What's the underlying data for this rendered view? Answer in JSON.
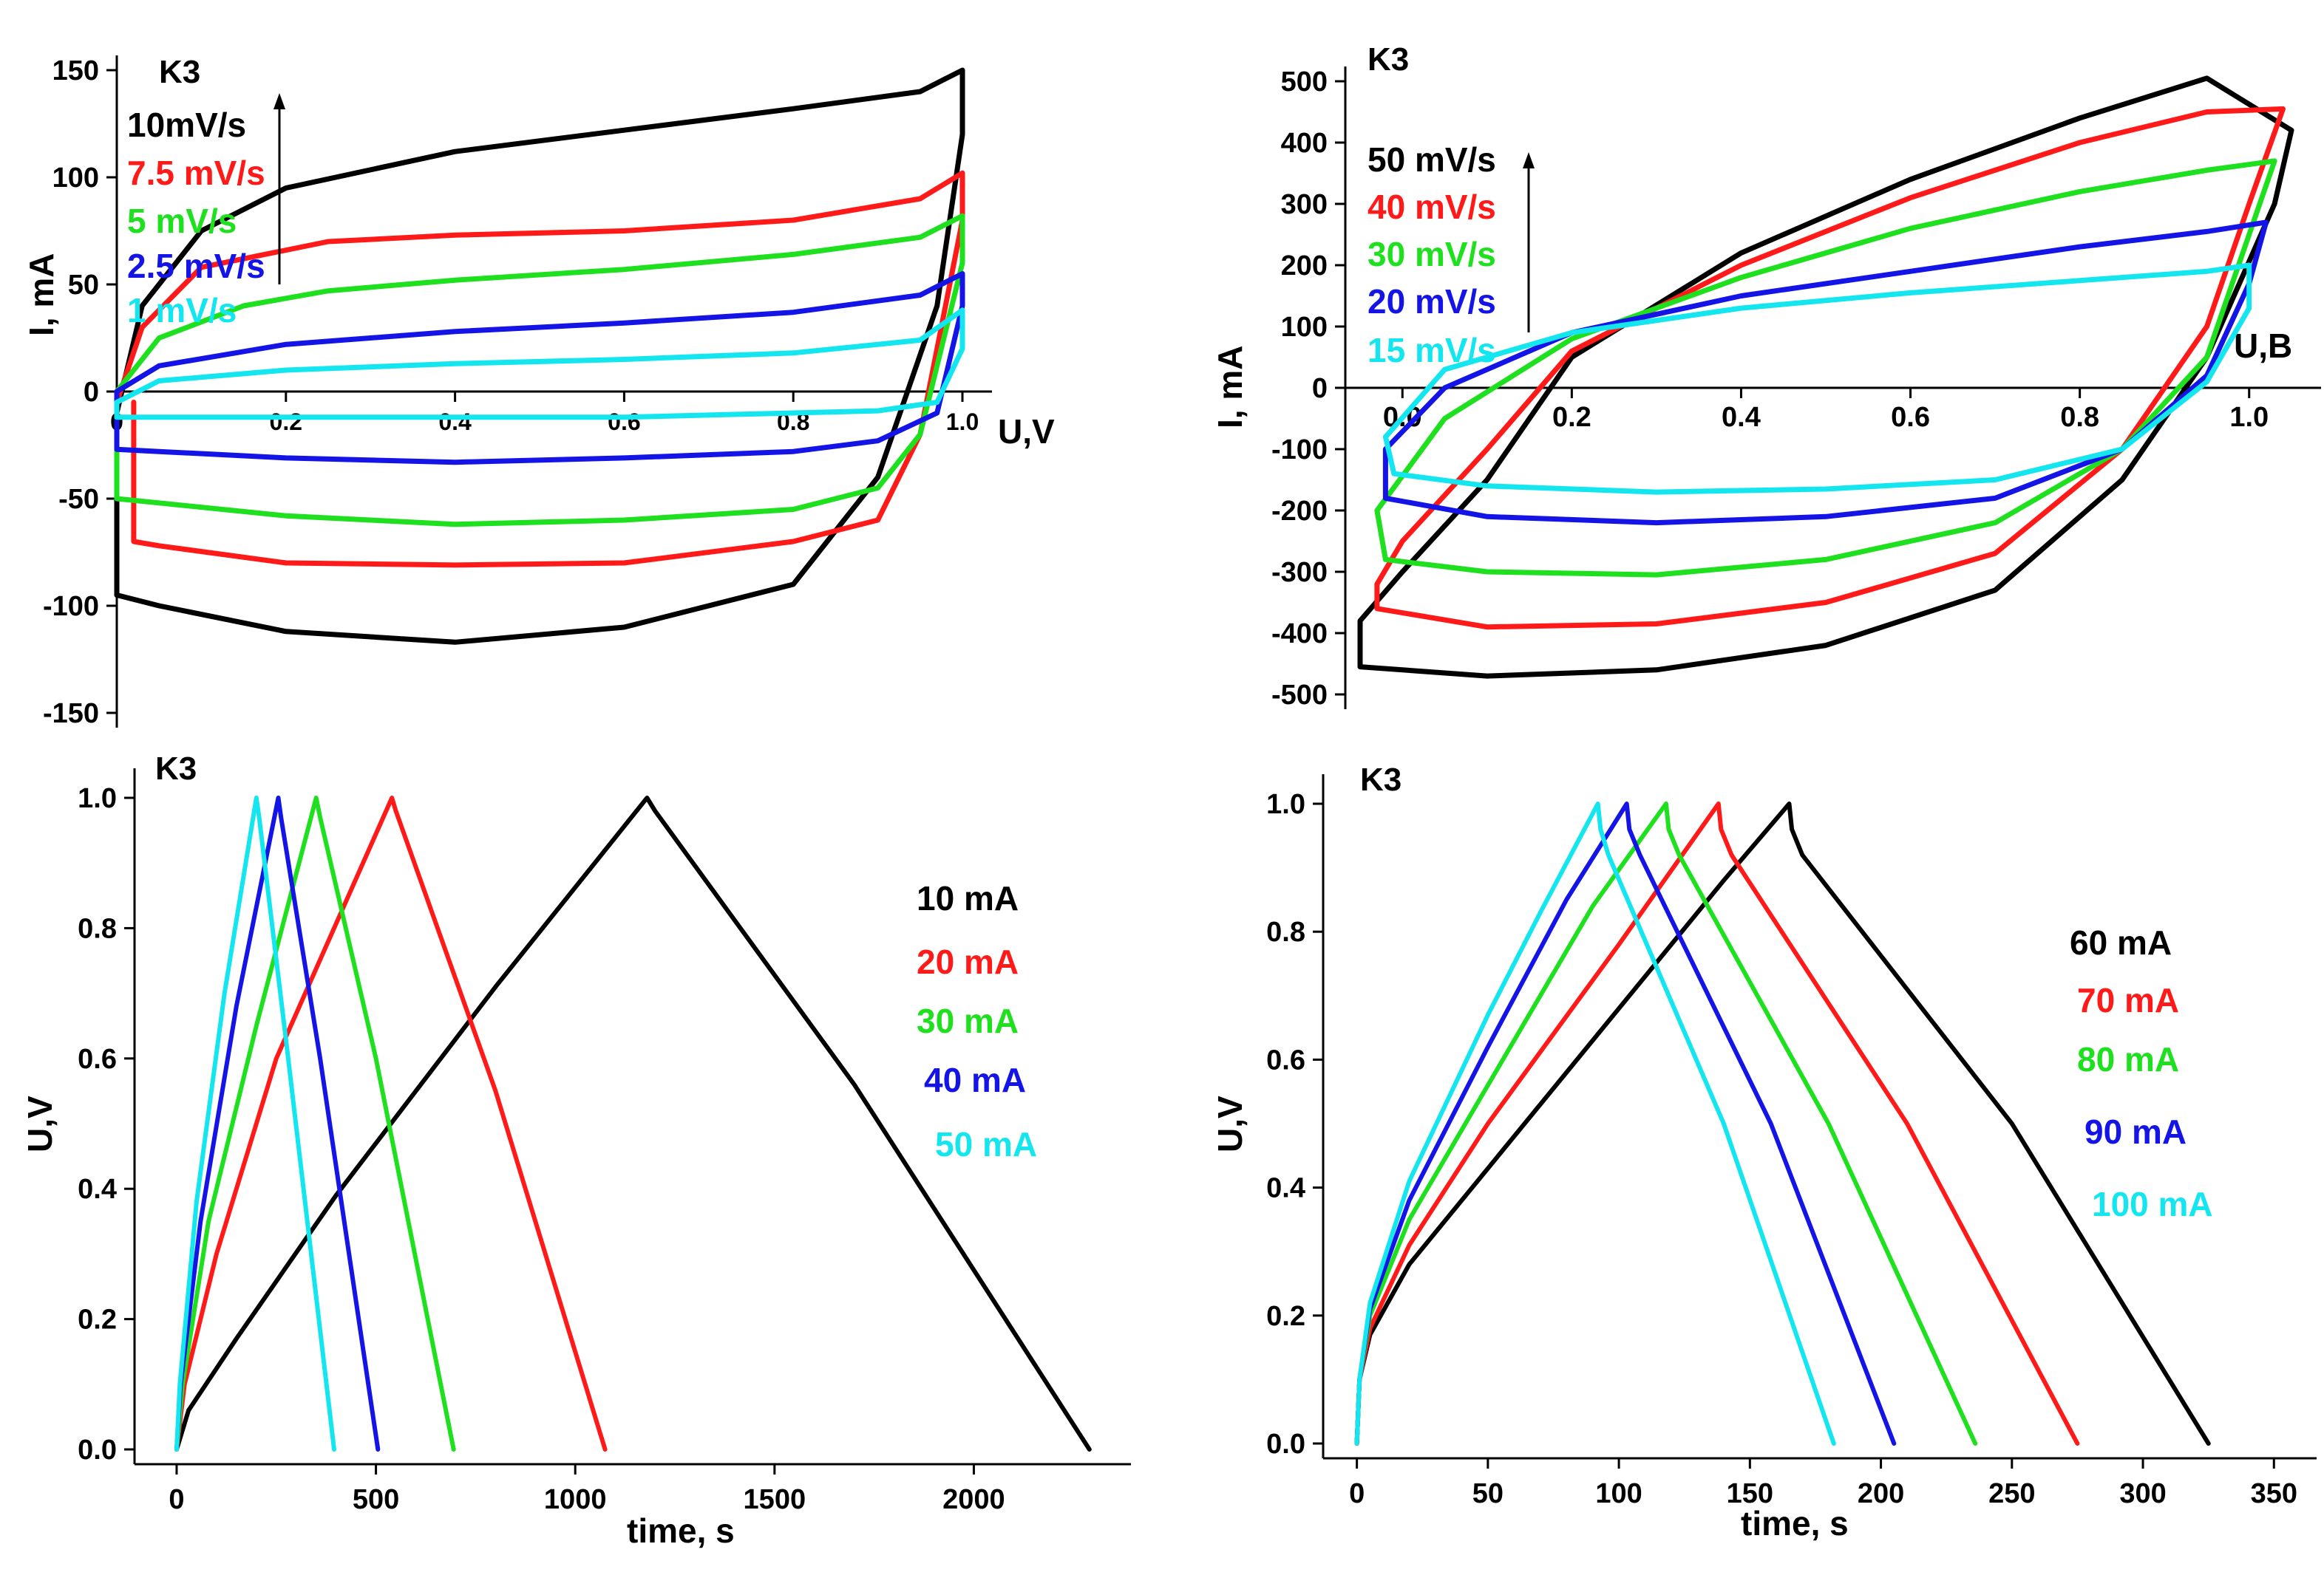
{
  "colors": [
    "#000000",
    "#ff1a1a",
    "#1fe01f",
    "#1414e6",
    "#14e6f0"
  ],
  "chart_data": [
    {
      "id": "p1",
      "type": "line",
      "subtype": "cyclic-voltammetry",
      "title": "K3",
      "xlabel": "U,V",
      "ylabel": "I, mA",
      "xlim": [
        0.0,
        1.0
      ],
      "ylim": [
        -150,
        150
      ],
      "xticks": [
        "0",
        "0.2",
        "0.4",
        "0.6",
        "0.8",
        "1.0"
      ],
      "yticks": [
        "150",
        "100",
        "50",
        "0",
        "-50",
        "-100",
        "-150"
      ],
      "grid": false,
      "legend": "top-left",
      "legend_arrow": true,
      "series": [
        {
          "name": "10mV/s",
          "x": [
            0.0,
            0.03,
            0.1,
            0.2,
            0.4,
            0.6,
            0.8,
            0.95,
            1.0,
            1.0,
            0.97,
            0.9,
            0.8,
            0.6,
            0.4,
            0.2,
            0.05,
            0.0,
            0.0
          ],
          "y": [
            -10,
            40,
            75,
            95,
            112,
            122,
            132,
            140,
            150,
            120,
            40,
            -40,
            -90,
            -110,
            -117,
            -112,
            -100,
            -95,
            -10
          ]
        },
        {
          "name": "7.5 mV/s",
          "x": [
            0.0,
            0.03,
            0.1,
            0.25,
            0.4,
            0.6,
            0.8,
            0.95,
            1.0,
            1.0,
            0.95,
            0.9,
            0.8,
            0.6,
            0.4,
            0.2,
            0.05,
            0.02,
            0.02
          ],
          "y": [
            -5,
            30,
            58,
            70,
            73,
            75,
            80,
            90,
            102,
            80,
            -20,
            -60,
            -70,
            -80,
            -81,
            -80,
            -72,
            -70,
            -5
          ]
        },
        {
          "name": "5 mV/s",
          "x": [
            0.0,
            0.05,
            0.15,
            0.25,
            0.4,
            0.6,
            0.8,
            0.95,
            1.0,
            1.0,
            0.95,
            0.9,
            0.8,
            0.6,
            0.4,
            0.2,
            0.05,
            0.0,
            0.0
          ],
          "y": [
            0,
            25,
            40,
            47,
            52,
            57,
            64,
            72,
            82,
            60,
            -20,
            -45,
            -55,
            -60,
            -62,
            -58,
            -52,
            -50,
            0
          ]
        },
        {
          "name": "2.5 mV/s",
          "x": [
            0.0,
            0.05,
            0.2,
            0.4,
            0.6,
            0.8,
            0.95,
            1.0,
            1.0,
            0.97,
            0.9,
            0.8,
            0.6,
            0.4,
            0.2,
            0.05,
            0.0,
            0.0
          ],
          "y": [
            0,
            12,
            22,
            28,
            32,
            37,
            45,
            55,
            40,
            -10,
            -23,
            -28,
            -31,
            -33,
            -31,
            -28,
            -27,
            0
          ]
        },
        {
          "name": "1 mV/s",
          "x": [
            0.0,
            0.05,
            0.2,
            0.4,
            0.6,
            0.8,
            0.95,
            1.0,
            1.0,
            0.97,
            0.9,
            0.8,
            0.6,
            0.4,
            0.2,
            0.05,
            0.0,
            0.0
          ],
          "y": [
            -5,
            5,
            10,
            13,
            15,
            18,
            24,
            38,
            20,
            -5,
            -9,
            -10,
            -12,
            -12,
            -12,
            -12,
            -12,
            -5
          ]
        }
      ]
    },
    {
      "id": "p2",
      "type": "line",
      "subtype": "cyclic-voltammetry",
      "title": "K3",
      "xlabel": "U,B",
      "ylabel": "I, mA",
      "xlim": [
        -0.05,
        1.05
      ],
      "ylim": [
        -500,
        500
      ],
      "xticks": [
        "0.0",
        "0.2",
        "0.4",
        "0.6",
        "0.8",
        "1.0"
      ],
      "yticks": [
        "500",
        "400",
        "300",
        "200",
        "100",
        "0",
        "-100",
        "-200",
        "-300",
        "-400",
        "-500"
      ],
      "grid": false,
      "legend": "top-left",
      "legend_arrow": true,
      "series": [
        {
          "name": "50 mV/s",
          "x": [
            0.0,
            0.1,
            0.2,
            0.4,
            0.6,
            0.8,
            0.95,
            1.05,
            1.03,
            0.95,
            0.85,
            0.7,
            0.5,
            0.3,
            0.1,
            -0.05,
            -0.05,
            0.0
          ],
          "y": [
            -300,
            -150,
            50,
            220,
            340,
            440,
            505,
            420,
            300,
            50,
            -150,
            -330,
            -420,
            -460,
            -470,
            -455,
            -380,
            -300
          ]
        },
        {
          "name": "40 mV/s",
          "x": [
            0.0,
            0.1,
            0.2,
            0.4,
            0.6,
            0.8,
            0.95,
            1.04,
            1.0,
            0.95,
            0.85,
            0.7,
            0.5,
            0.3,
            0.1,
            -0.03,
            -0.03,
            0.0
          ],
          "y": [
            -250,
            -100,
            60,
            200,
            310,
            400,
            450,
            455,
            300,
            100,
            -100,
            -270,
            -350,
            -385,
            -390,
            -360,
            -320,
            -250
          ]
        },
        {
          "name": "30 mV/s",
          "x": [
            -0.03,
            0.05,
            0.2,
            0.4,
            0.6,
            0.8,
            0.95,
            1.03,
            1.0,
            0.95,
            0.85,
            0.7,
            0.5,
            0.3,
            0.1,
            -0.02,
            -0.03
          ],
          "y": [
            -200,
            -50,
            80,
            180,
            260,
            320,
            355,
            370,
            250,
            50,
            -100,
            -220,
            -280,
            -305,
            -300,
            -280,
            -200
          ]
        },
        {
          "name": "20 mV/s",
          "x": [
            -0.02,
            0.05,
            0.2,
            0.4,
            0.6,
            0.8,
            0.95,
            1.02,
            1.0,
            0.95,
            0.85,
            0.7,
            0.5,
            0.3,
            0.1,
            -0.02,
            -0.02
          ],
          "y": [
            -100,
            0,
            90,
            150,
            190,
            230,
            255,
            270,
            170,
            20,
            -100,
            -180,
            -210,
            -220,
            -210,
            -180,
            -100
          ]
        },
        {
          "name": "15 mV/s",
          "x": [
            -0.02,
            0.05,
            0.2,
            0.4,
            0.6,
            0.8,
            0.95,
            1.0,
            1.0,
            0.95,
            0.85,
            0.7,
            0.5,
            0.3,
            0.1,
            -0.01,
            -0.02
          ],
          "y": [
            -80,
            30,
            90,
            130,
            155,
            175,
            190,
            200,
            130,
            10,
            -100,
            -150,
            -165,
            -170,
            -160,
            -140,
            -80
          ]
        }
      ]
    },
    {
      "id": "p3",
      "type": "line",
      "subtype": "galvanostatic-charge-discharge",
      "title": "K3",
      "xlabel": "time, s",
      "ylabel": "U,V",
      "xlim": [
        -50,
        2320
      ],
      "ylim": [
        0.0,
        1.0
      ],
      "xticks": [
        "0",
        "500",
        "1000",
        "1500",
        "2000"
      ],
      "yticks": [
        "0.0",
        "0.2",
        "0.4",
        "0.6",
        "0.8",
        "1.0"
      ],
      "grid": false,
      "legend": "right",
      "series": [
        {
          "name": "10 mA",
          "x": [
            0,
            30,
            150,
            400,
            800,
            1180,
            1200,
            1700,
            2290
          ],
          "y": [
            0.0,
            0.06,
            0.17,
            0.39,
            0.71,
            1.0,
            0.98,
            0.56,
            0.0
          ]
        },
        {
          "name": "20 mA",
          "x": [
            0,
            20,
            100,
            250,
            540,
            550,
            800,
            1075
          ],
          "y": [
            0.0,
            0.1,
            0.3,
            0.6,
            1.0,
            0.98,
            0.55,
            0.0
          ]
        },
        {
          "name": "30 mA",
          "x": [
            0,
            15,
            80,
            200,
            350,
            360,
            500,
            695
          ],
          "y": [
            0.0,
            0.1,
            0.35,
            0.65,
            1.0,
            0.97,
            0.6,
            0.0
          ]
        },
        {
          "name": "40 mA",
          "x": [
            0,
            10,
            60,
            150,
            255,
            262,
            360,
            505
          ],
          "y": [
            0.0,
            0.1,
            0.35,
            0.68,
            1.0,
            0.97,
            0.6,
            0.0
          ]
        },
        {
          "name": "50 mA",
          "x": [
            0,
            8,
            50,
            120,
            200,
            207,
            280,
            395
          ],
          "y": [
            0.0,
            0.1,
            0.38,
            0.7,
            1.0,
            0.97,
            0.6,
            0.0
          ]
        }
      ]
    },
    {
      "id": "p4",
      "type": "line",
      "subtype": "galvanostatic-charge-discharge",
      "title": "K3",
      "xlabel": "time, s",
      "ylabel": "U,V",
      "xlim": [
        -3,
        355
      ],
      "ylim": [
        0.0,
        1.0
      ],
      "xticks": [
        "0",
        "50",
        "100",
        "150",
        "200",
        "250",
        "300",
        "350"
      ],
      "yticks": [
        "0.0",
        "0.2",
        "0.4",
        "0.6",
        "0.8",
        "1.0"
      ],
      "grid": false,
      "legend": "right",
      "series": [
        {
          "name": "60 mA",
          "x": [
            0,
            1,
            5,
            20,
            50,
            100,
            140,
            165,
            166,
            170,
            250,
            325
          ],
          "y": [
            0.0,
            0.1,
            0.17,
            0.28,
            0.43,
            0.68,
            0.88,
            1.0,
            0.96,
            0.92,
            0.5,
            0.0
          ]
        },
        {
          "name": "70 mA",
          "x": [
            0,
            1,
            5,
            20,
            50,
            100,
            138,
            139,
            143,
            210,
            275
          ],
          "y": [
            0.0,
            0.1,
            0.18,
            0.31,
            0.5,
            0.78,
            1.0,
            0.96,
            0.92,
            0.5,
            0.0
          ]
        },
        {
          "name": "80 mA",
          "x": [
            0,
            1,
            5,
            20,
            50,
            90,
            118,
            119,
            123,
            180,
            236
          ],
          "y": [
            0.0,
            0.1,
            0.2,
            0.35,
            0.56,
            0.84,
            1.0,
            0.96,
            0.92,
            0.5,
            0.0
          ]
        },
        {
          "name": "90 mA",
          "x": [
            0,
            1,
            5,
            20,
            50,
            80,
            103,
            104,
            108,
            158,
            205
          ],
          "y": [
            0.0,
            0.1,
            0.21,
            0.38,
            0.62,
            0.85,
            1.0,
            0.96,
            0.92,
            0.5,
            0.0
          ]
        },
        {
          "name": "100 mA",
          "x": [
            0,
            1,
            5,
            20,
            50,
            70,
            92,
            93,
            96,
            140,
            182
          ],
          "y": [
            0.0,
            0.1,
            0.22,
            0.41,
            0.67,
            0.83,
            1.0,
            0.96,
            0.92,
            0.5,
            0.0
          ]
        }
      ]
    }
  ]
}
